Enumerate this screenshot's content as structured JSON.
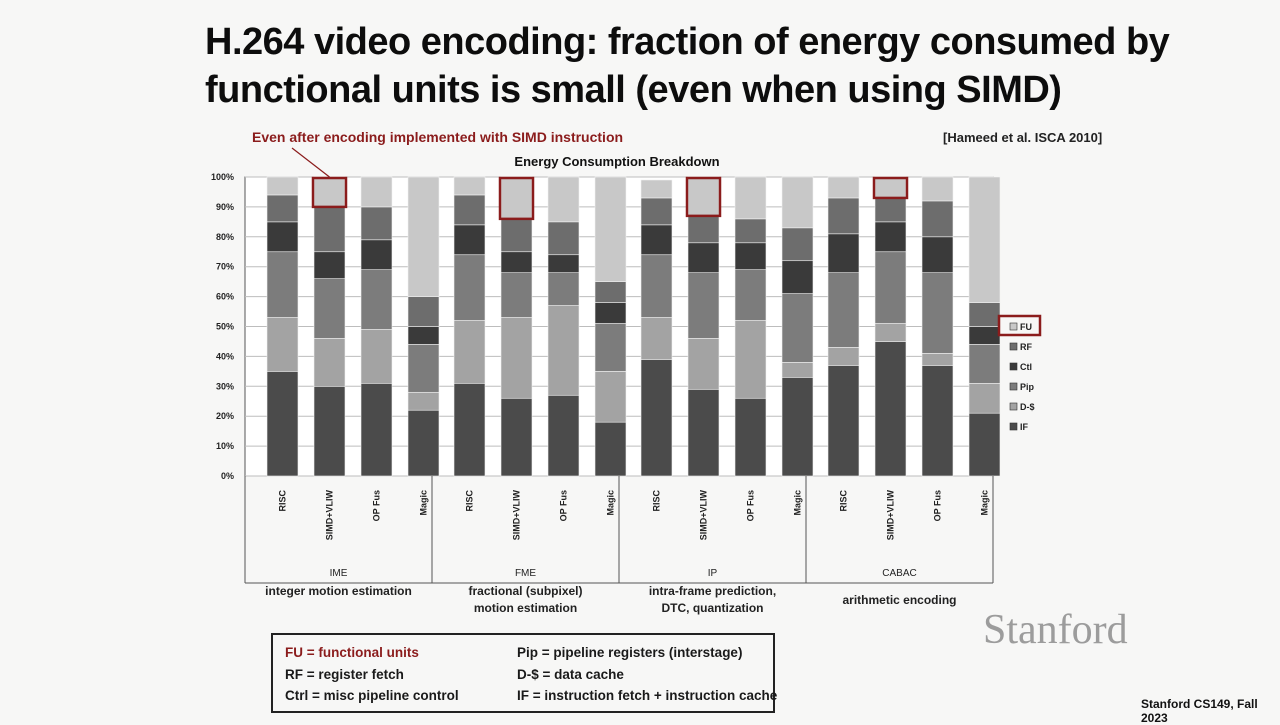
{
  "slide": {
    "title": "H.264 video encoding: fraction of energy consumed by\nfunctional units is small (even when using SIMD)",
    "annotation": "Even after encoding implemented with SIMD instruction",
    "citation": "[Hameed et al. ISCA 2010]",
    "logo": "Stanford",
    "footer": "Stanford CS149, Fall 2023"
  },
  "legend_box": [
    "FU = functional units",
    "RF = register fetch",
    "Ctrl = misc pipeline control",
    "Pip = pipeline registers (interstage)",
    "D-$ = data cache",
    "IF = instruction fetch + instruction cache"
  ],
  "chart_data": {
    "type": "bar",
    "stacked": true,
    "percent": true,
    "title": "Energy Consumption Breakdown",
    "ylim": [
      0,
      100
    ],
    "yticks": [
      "0%",
      "10%",
      "20%",
      "30%",
      "40%",
      "50%",
      "60%",
      "70%",
      "80%",
      "90%",
      "100%"
    ],
    "grid": true,
    "categories": [
      "RISC",
      "SIMD+VLIW",
      "OP Fus",
      "Magic",
      "RISC",
      "SIMD+VLIW",
      "OP Fus",
      "Magic",
      "RISC",
      "SIMD+VLIW",
      "OP Fus",
      "Magic",
      "RISC",
      "SIMD+VLIW",
      "OP Fus",
      "Magic"
    ],
    "groups": [
      {
        "name": "IME",
        "description": "integer motion estimation"
      },
      {
        "name": "FME",
        "description": "fractional (subpixel)\nmotion estimation"
      },
      {
        "name": "IP",
        "description": "intra-frame prediction,\nDTC, quantization"
      },
      {
        "name": "CABAC",
        "description": "arithmetic encoding"
      }
    ],
    "series": [
      {
        "name": "IF",
        "color": "#4b4b4b",
        "values": [
          35,
          30,
          31,
          22,
          31,
          26,
          27,
          18,
          39,
          29,
          26,
          33,
          37,
          45,
          37,
          21
        ]
      },
      {
        "name": "D-$",
        "color": "#a3a3a3",
        "values": [
          18,
          16,
          18,
          6,
          21,
          27,
          30,
          17,
          14,
          17,
          26,
          5,
          6,
          6,
          4,
          10
        ]
      },
      {
        "name": "Pip",
        "color": "#7c7c7c",
        "values": [
          22,
          20,
          20,
          16,
          22,
          15,
          11,
          16,
          21,
          22,
          17,
          23,
          25,
          24,
          27,
          13
        ]
      },
      {
        "name": "Ctl",
        "color": "#3a3a3a",
        "values": [
          10,
          9,
          10,
          6,
          10,
          7,
          6,
          7,
          10,
          10,
          9,
          11,
          13,
          10,
          12,
          6
        ]
      },
      {
        "name": "RF",
        "color": "#6d6d6d",
        "values": [
          9,
          15,
          11,
          10,
          10,
          11,
          11,
          7,
          9,
          9,
          8,
          11,
          12,
          8,
          12,
          8
        ]
      },
      {
        "name": "FU",
        "color": "#c8c8c8",
        "values": [
          6,
          10,
          10,
          40,
          6,
          14,
          15,
          35,
          6,
          13,
          14,
          17,
          7,
          7,
          8,
          42
        ]
      }
    ],
    "legend_order": [
      "FU",
      "RF",
      "Ctl",
      "Pip",
      "D-$",
      "IF"
    ],
    "legend_position": "right",
    "highlighted_bars": [
      1,
      5,
      9,
      13
    ],
    "highlighted_legend": "FU",
    "highlight_color": "#8b1c1c"
  }
}
